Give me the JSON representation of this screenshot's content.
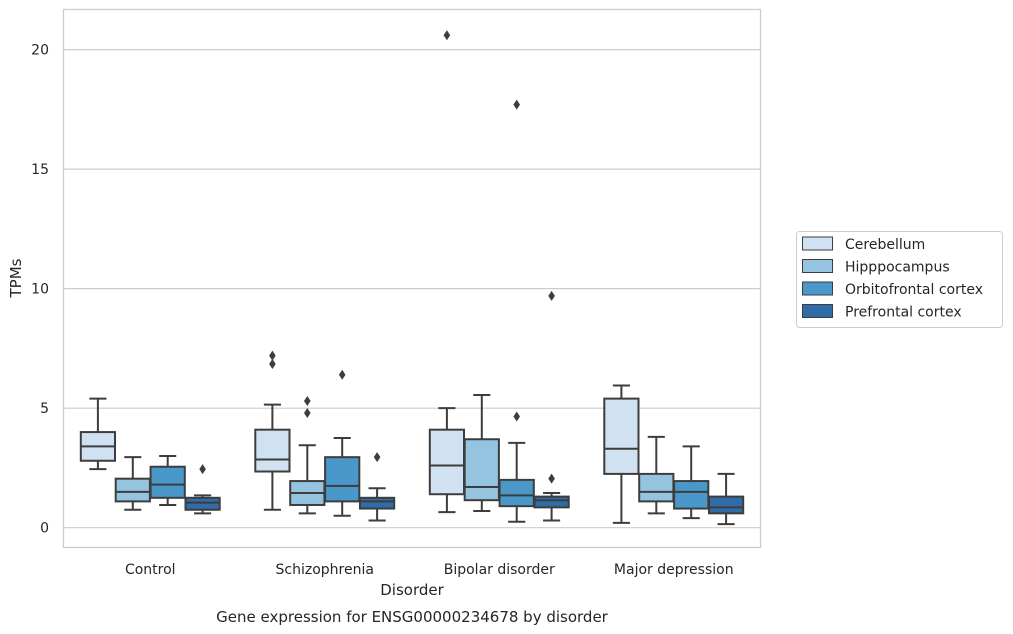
{
  "chart_data": {
    "type": "box",
    "title": "",
    "caption": "Gene expression for ENSG00000234678 by disorder",
    "xlabel": "Disorder",
    "ylabel": "TPMs",
    "ylim": [
      -0.85,
      21.7
    ],
    "yticks": [
      0,
      5,
      10,
      15,
      20
    ],
    "grid": "horizontal",
    "legend_position": "right",
    "categories": [
      "Control",
      "Schizophrenia",
      "Bipolar disorder",
      "Major depression"
    ],
    "series": [
      {
        "name": "Cerebellum",
        "color": "#d0e1f2",
        "boxes": [
          {
            "whislo": 2.45,
            "q1": 2.8,
            "med": 3.4,
            "q3": 4.0,
            "whishi": 5.4,
            "fliers": []
          },
          {
            "whislo": 0.75,
            "q1": 2.35,
            "med": 2.85,
            "q3": 4.1,
            "whishi": 5.15,
            "fliers": [
              6.85,
              7.2
            ]
          },
          {
            "whislo": 0.65,
            "q1": 1.4,
            "med": 2.6,
            "q3": 4.1,
            "whishi": 5.0,
            "fliers": [
              20.6
            ]
          },
          {
            "whislo": 0.2,
            "q1": 2.25,
            "med": 3.3,
            "q3": 5.4,
            "whishi": 5.95,
            "fliers": []
          }
        ]
      },
      {
        "name": "Hipppocampus",
        "color": "#94c4df",
        "boxes": [
          {
            "whislo": 0.75,
            "q1": 1.1,
            "med": 1.5,
            "q3": 2.05,
            "whishi": 2.95,
            "fliers": []
          },
          {
            "whislo": 0.6,
            "q1": 0.95,
            "med": 1.45,
            "q3": 1.95,
            "whishi": 3.45,
            "fliers": [
              4.8,
              5.3
            ]
          },
          {
            "whislo": 0.7,
            "q1": 1.15,
            "med": 1.7,
            "q3": 3.7,
            "whishi": 5.55,
            "fliers": []
          },
          {
            "whislo": 0.6,
            "q1": 1.1,
            "med": 1.5,
            "q3": 2.25,
            "whishi": 3.8,
            "fliers": []
          }
        ]
      },
      {
        "name": "Orbitofrontal cortex",
        "color": "#4a98c9",
        "boxes": [
          {
            "whislo": 0.95,
            "q1": 1.25,
            "med": 1.8,
            "q3": 2.55,
            "whishi": 3.0,
            "fliers": []
          },
          {
            "whislo": 0.5,
            "q1": 1.1,
            "med": 1.75,
            "q3": 2.95,
            "whishi": 3.75,
            "fliers": [
              6.4
            ]
          },
          {
            "whislo": 0.25,
            "q1": 0.9,
            "med": 1.35,
            "q3": 2.0,
            "whishi": 3.55,
            "fliers": [
              4.65,
              17.7
            ]
          },
          {
            "whislo": 0.4,
            "q1": 0.8,
            "med": 1.5,
            "q3": 1.95,
            "whishi": 3.4,
            "fliers": []
          }
        ]
      },
      {
        "name": "Prefrontal cortex",
        "color": "#2f6ca8",
        "boxes": [
          {
            "whislo": 0.6,
            "q1": 0.75,
            "med": 1.05,
            "q3": 1.25,
            "whishi": 1.35,
            "fliers": [
              2.45
            ]
          },
          {
            "whislo": 0.3,
            "q1": 0.8,
            "med": 1.1,
            "q3": 1.25,
            "whishi": 1.65,
            "fliers": [
              2.95
            ]
          },
          {
            "whislo": 0.3,
            "q1": 0.85,
            "med": 1.15,
            "q3": 1.3,
            "whishi": 1.45,
            "fliers": [
              2.05,
              9.7
            ]
          },
          {
            "whislo": 0.15,
            "q1": 0.6,
            "med": 0.85,
            "q3": 1.3,
            "whishi": 2.25,
            "fliers": []
          }
        ]
      }
    ]
  }
}
